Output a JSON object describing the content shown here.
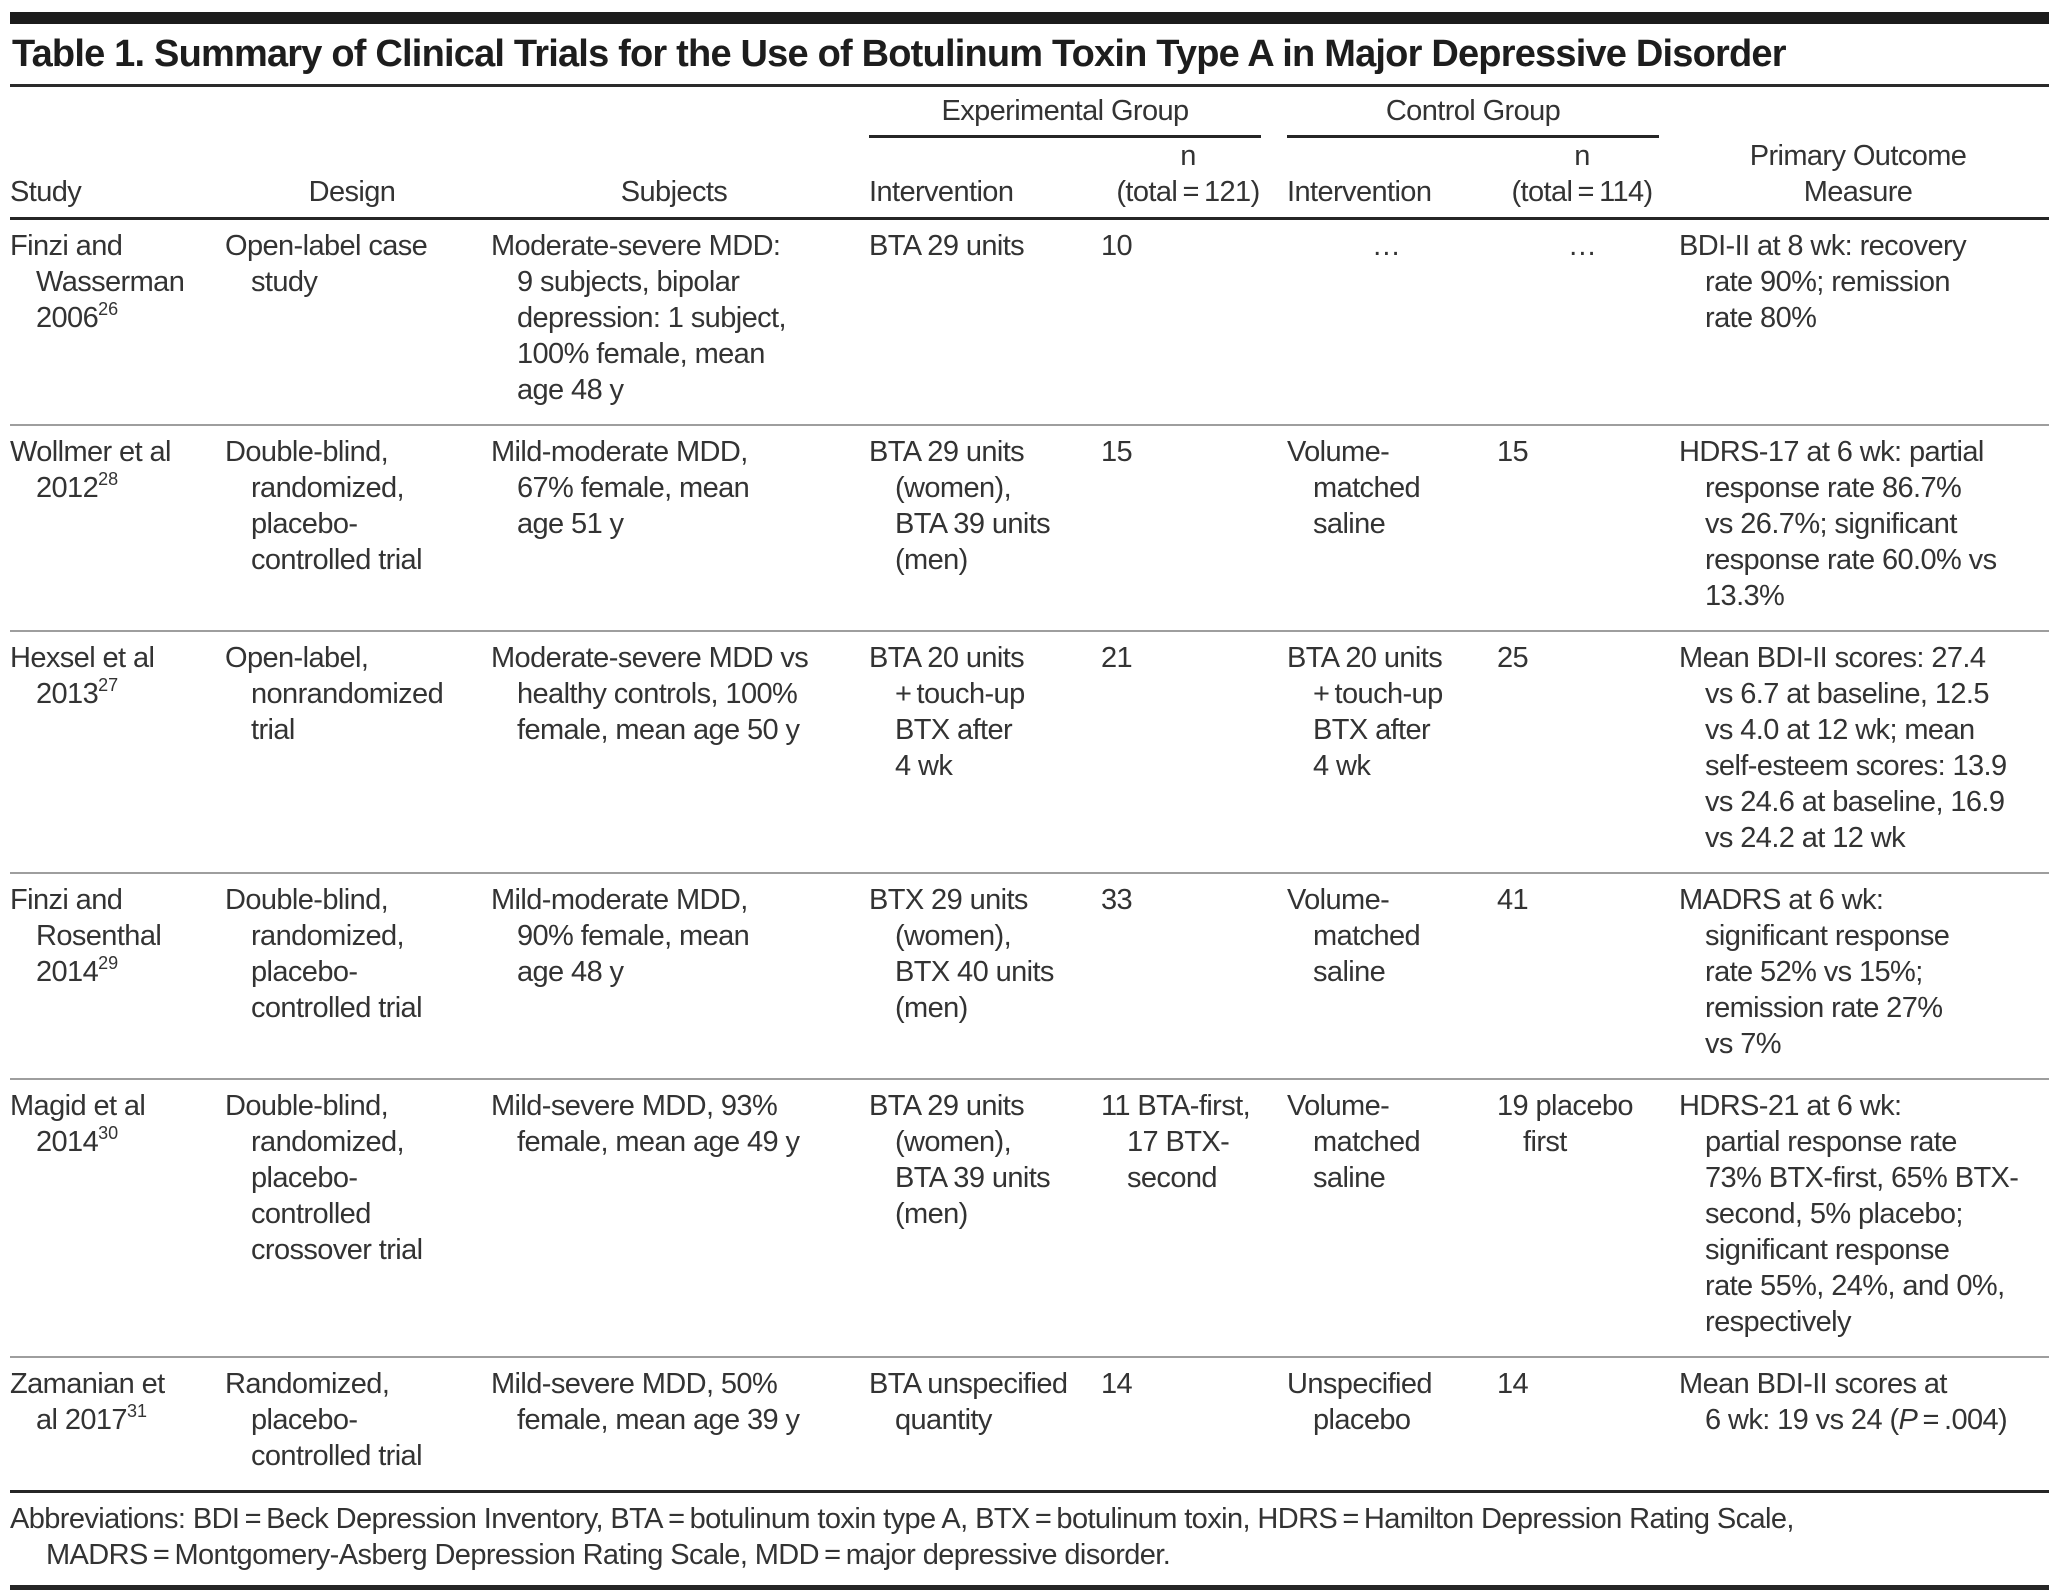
{
  "title": "Table 1. Summary of Clinical Trials for the Use of Botulinum Toxin Type A in Major Depressive Disorder",
  "header": {
    "exp_group": "Experimental Group",
    "ctrl_group": "Control Group",
    "study": "Study",
    "design": "Design",
    "subjects": "Subjects",
    "exp_intervention": "Intervention",
    "exp_n": "n\n(total = 121)",
    "ctrl_intervention": "Intervention",
    "ctrl_n": "n\n(total = 114)",
    "outcome": "Primary Outcome\nMeasure"
  },
  "rows": [
    {
      "study": "Finzi and\nWasserman\n2006",
      "ref": "26",
      "design": "Open-label case\nstudy",
      "subjects": "Moderate-severe MDD:\n9 subjects, bipolar\ndepression: 1 subject,\n100% female, mean\nage 48 y",
      "exp_intervention": "BTA 29 units",
      "exp_n": "10",
      "ctrl_intervention": "…",
      "ctrl_n": "…",
      "outcome": "BDI-II at 8 wk: recovery\nrate 90%; remission\nrate 80%"
    },
    {
      "study": "Wollmer et al\n2012",
      "ref": "28",
      "design": "Double-blind,\nrandomized,\nplacebo-\ncontrolled trial",
      "subjects": "Mild-moderate MDD,\n67% female, mean\nage 51 y",
      "exp_intervention": "BTA 29 units\n(women),\nBTA 39 units\n(men)",
      "exp_n": "15",
      "ctrl_intervention": "Volume-\nmatched\nsaline",
      "ctrl_n": "15",
      "outcome": "HDRS-17 at 6 wk: partial\nresponse rate 86.7%\nvs 26.7%; significant\nresponse rate 60.0% vs\n13.3%"
    },
    {
      "study": "Hexsel et al\n2013",
      "ref": "27",
      "design": "Open-label,\nnonrandomized\ntrial",
      "subjects": "Moderate-severe MDD vs\nhealthy controls, 100%\nfemale, mean age 50 y",
      "exp_intervention": "BTA 20 units\n+ touch-up\nBTX after\n4 wk",
      "exp_n": "21",
      "ctrl_intervention": "BTA 20 units\n+ touch-up\nBTX after\n4 wk",
      "ctrl_n": "25",
      "outcome": "Mean BDI-II scores: 27.4\nvs 6.7 at baseline, 12.5\nvs 4.0 at 12 wk; mean\nself-esteem scores: 13.9\nvs 24.6 at baseline, 16.9\nvs 24.2 at 12 wk"
    },
    {
      "study": "Finzi and\nRosenthal\n2014",
      "ref": "29",
      "design": "Double-blind,\nrandomized,\nplacebo-\ncontrolled trial",
      "subjects": "Mild-moderate MDD,\n90% female, mean\nage 48 y",
      "exp_intervention": "BTX 29 units\n(women),\nBTX 40 units\n(men)",
      "exp_n": "33",
      "ctrl_intervention": "Volume-\nmatched\nsaline",
      "ctrl_n": "41",
      "outcome": "MADRS at 6 wk:\nsignificant response\nrate 52% vs 15%;\nremission rate 27%\nvs 7%"
    },
    {
      "study": "Magid et al\n2014",
      "ref": "30",
      "design": "Double-blind,\nrandomized,\nplacebo-\ncontrolled\ncrossover trial",
      "subjects": "Mild-severe MDD, 93%\nfemale, mean age 49 y",
      "exp_intervention": "BTA 29 units\n(women),\nBTA 39 units\n(men)",
      "exp_n": "11 BTA-first,\n17 BTX-\nsecond",
      "ctrl_intervention": "Volume-\nmatched\nsaline",
      "ctrl_n": "19 placebo\nfirst",
      "outcome": "HDRS-21 at 6 wk:\npartial response rate\n73% BTX-first, 65% BTX-\nsecond, 5% placebo;\nsignificant response\nrate 55%, 24%, and 0%,\nrespectively"
    },
    {
      "study": "Zamanian et\nal 2017",
      "ref": "31",
      "design": "Randomized,\nplacebo-\ncontrolled trial",
      "subjects": "Mild-severe MDD, 50%\nfemale, mean age 39 y",
      "exp_intervention": "BTA unspecified\nquantity",
      "exp_n": "14",
      "ctrl_intervention": "Unspecified\nplacebo",
      "ctrl_n": "14",
      "outcome_pre": "Mean BDI-II scores at\n6 wk: 19 vs 24 (",
      "outcome_p": "P",
      "outcome_post": " = .004)"
    }
  ],
  "footnote": "Abbreviations: BDI = Beck Depression Inventory, BTA = botulinum toxin type A, BTX = botulinum toxin, HDRS = Hamilton Depression Rating Scale,\nMADRS = Montgomery-Asberg Depression Rating Scale, MDD = major depressive disorder."
}
